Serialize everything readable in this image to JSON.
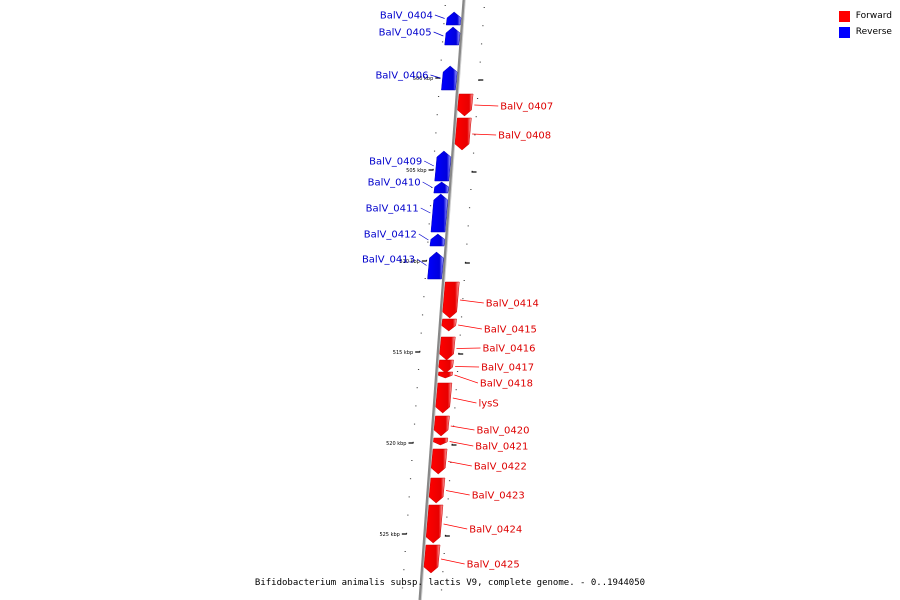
{
  "legend": [
    {
      "label": "Forward",
      "color": "#ff0000"
    },
    {
      "label": "Reverse",
      "color": "#0000ff"
    }
  ],
  "caption": "Bifidobacterium animalis subsp. lactis V9, complete genome. - 0..1944050",
  "ticks": [
    "500 kbp",
    "505 kbp",
    "510 kbp",
    "515 kbp",
    "520 kbp",
    "525 kbp"
  ],
  "genes": [
    {
      "name": "BalV_0404",
      "strand": "reverse"
    },
    {
      "name": "BalV_0405",
      "strand": "reverse"
    },
    {
      "name": "BalV_0406",
      "strand": "reverse"
    },
    {
      "name": "BalV_0407",
      "strand": "forward"
    },
    {
      "name": "BalV_0408",
      "strand": "forward"
    },
    {
      "name": "BalV_0409",
      "strand": "reverse"
    },
    {
      "name": "BalV_0410",
      "strand": "reverse"
    },
    {
      "name": "BalV_0411",
      "strand": "reverse"
    },
    {
      "name": "BalV_0412",
      "strand": "reverse"
    },
    {
      "name": "BalV_0413",
      "strand": "reverse"
    },
    {
      "name": "BalV_0414",
      "strand": "forward"
    },
    {
      "name": "BalV_0415",
      "strand": "forward"
    },
    {
      "name": "BalV_0416",
      "strand": "forward"
    },
    {
      "name": "BalV_0417",
      "strand": "forward"
    },
    {
      "name": "BalV_0418",
      "strand": "forward"
    },
    {
      "name": "lysS",
      "strand": "forward"
    },
    {
      "name": "BalV_0420",
      "strand": "forward"
    },
    {
      "name": "BalV_0421",
      "strand": "forward"
    },
    {
      "name": "BalV_0422",
      "strand": "forward"
    },
    {
      "name": "BalV_0423",
      "strand": "forward"
    },
    {
      "name": "BalV_0424",
      "strand": "forward"
    },
    {
      "name": "BalV_0425",
      "strand": "forward"
    }
  ]
}
